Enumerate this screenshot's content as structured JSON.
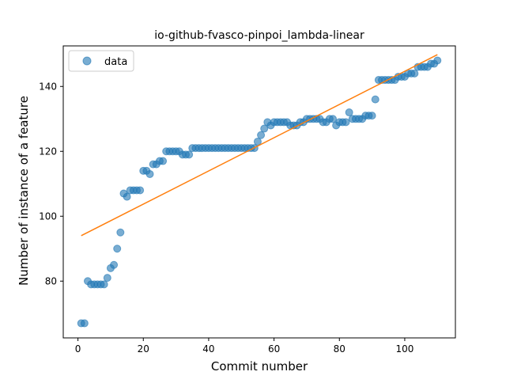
{
  "chart_data": {
    "type": "scatter",
    "title": "io-github-fvasco-pinpoi_lambda-linear",
    "xlabel": "Commit number",
    "ylabel": "Number of instance of a feature",
    "xlim": [
      -4.5,
      115.5
    ],
    "ylim": [
      62.5,
      152.5
    ],
    "xticks": [
      0,
      20,
      40,
      60,
      80,
      100
    ],
    "yticks": [
      80,
      100,
      120,
      140
    ],
    "legend": {
      "position": "top-left",
      "entries": [
        "data"
      ]
    },
    "colors": {
      "data": "#1f77b4",
      "fit": "#ff7f0e"
    },
    "series": [
      {
        "name": "data",
        "kind": "scatter",
        "x": [
          1,
          2,
          3,
          4,
          5,
          6,
          7,
          8,
          9,
          10,
          11,
          12,
          13,
          14,
          15,
          16,
          17,
          18,
          19,
          20,
          21,
          22,
          23,
          24,
          25,
          26,
          27,
          28,
          29,
          30,
          31,
          32,
          33,
          34,
          35,
          36,
          37,
          38,
          39,
          40,
          41,
          42,
          43,
          44,
          45,
          46,
          47,
          48,
          49,
          50,
          51,
          52,
          53,
          54,
          55,
          56,
          57,
          58,
          59,
          60,
          61,
          62,
          63,
          64,
          65,
          66,
          67,
          68,
          69,
          70,
          71,
          72,
          73,
          74,
          75,
          76,
          77,
          78,
          79,
          80,
          81,
          82,
          83,
          84,
          85,
          86,
          87,
          88,
          89,
          90,
          91,
          92,
          93,
          94,
          95,
          96,
          97,
          98,
          99,
          100,
          101,
          102,
          103,
          104,
          105,
          106,
          107,
          108,
          109,
          110
        ],
        "y": [
          67,
          67,
          80,
          79,
          79,
          79,
          79,
          79,
          81,
          84,
          85,
          90,
          95,
          107,
          106,
          108,
          108,
          108,
          108,
          114,
          114,
          113,
          116,
          116,
          117,
          117,
          120,
          120,
          120,
          120,
          120,
          119,
          119,
          119,
          121,
          121,
          121,
          121,
          121,
          121,
          121,
          121,
          121,
          121,
          121,
          121,
          121,
          121,
          121,
          121,
          121,
          121,
          121,
          121,
          123,
          125,
          127,
          129,
          128,
          129,
          129,
          129,
          129,
          129,
          128,
          128,
          128,
          129,
          129,
          130,
          130,
          130,
          130,
          130,
          129,
          129,
          130,
          130,
          128,
          129,
          129,
          129,
          132,
          130,
          130,
          130,
          130,
          131,
          131,
          131,
          136,
          142,
          142,
          142,
          142,
          142,
          142,
          143,
          143,
          143,
          144,
          144,
          144,
          146,
          146,
          146,
          146,
          147,
          147,
          148
        ]
      }
    ],
    "fit_line": {
      "x": [
        1,
        110
      ],
      "y": [
        94,
        149.8
      ]
    }
  }
}
